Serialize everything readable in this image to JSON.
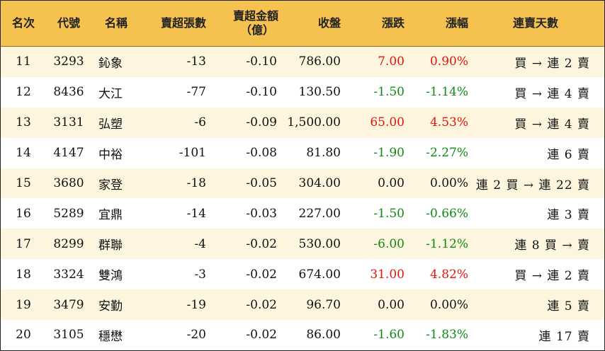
{
  "headers": {
    "rank": "名次",
    "code": "代號",
    "name": "名稱",
    "net_sell_lots": "賣超張數",
    "net_sell_amount_line1": "賣超金額",
    "net_sell_amount_line2": "（億）",
    "close": "收盤",
    "change": "漲跌",
    "change_pct": "漲幅",
    "streak": "連賣天數"
  },
  "rows": [
    {
      "rank": "11",
      "code": "3293",
      "name": "鈊象",
      "lots": "-13",
      "amount": "-0.10",
      "close": "786.00",
      "change": "7.00",
      "pct": "0.90%",
      "dir": "up",
      "streak": "買 → 連 2 賣"
    },
    {
      "rank": "12",
      "code": "8436",
      "name": "大江",
      "lots": "-77",
      "amount": "-0.10",
      "close": "130.50",
      "change": "-1.50",
      "pct": "-1.14%",
      "dir": "down",
      "streak": "買 → 連 4 賣"
    },
    {
      "rank": "13",
      "code": "3131",
      "name": "弘塑",
      "lots": "-6",
      "amount": "-0.09",
      "close": "1,500.00",
      "change": "65.00",
      "pct": "4.53%",
      "dir": "up",
      "streak": "買 → 連 4 賣"
    },
    {
      "rank": "14",
      "code": "4147",
      "name": "中裕",
      "lots": "-101",
      "amount": "-0.08",
      "close": "81.80",
      "change": "-1.90",
      "pct": "-2.27%",
      "dir": "down",
      "streak": "連 6 賣"
    },
    {
      "rank": "15",
      "code": "3680",
      "name": "家登",
      "lots": "-18",
      "amount": "-0.05",
      "close": "304.00",
      "change": "0.00",
      "pct": "0.00%",
      "dir": "flat",
      "streak": "連 2 買 → 連 22 賣"
    },
    {
      "rank": "16",
      "code": "5289",
      "name": "宜鼎",
      "lots": "-14",
      "amount": "-0.03",
      "close": "227.00",
      "change": "-1.50",
      "pct": "-0.66%",
      "dir": "down",
      "streak": "連 3 賣"
    },
    {
      "rank": "17",
      "code": "8299",
      "name": "群聯",
      "lots": "-4",
      "amount": "-0.02",
      "close": "530.00",
      "change": "-6.00",
      "pct": "-1.12%",
      "dir": "down",
      "streak": "連 8 買 → 賣"
    },
    {
      "rank": "18",
      "code": "3324",
      "name": "雙鴻",
      "lots": "-3",
      "amount": "-0.02",
      "close": "674.00",
      "change": "31.00",
      "pct": "4.82%",
      "dir": "up",
      "streak": "買 → 連 2 賣"
    },
    {
      "rank": "19",
      "code": "3479",
      "name": "安勤",
      "lots": "-19",
      "amount": "-0.02",
      "close": "96.70",
      "change": "0.00",
      "pct": "0.00%",
      "dir": "flat",
      "streak": "連 5 賣"
    },
    {
      "rank": "20",
      "code": "3105",
      "name": "穩懋",
      "lots": "-20",
      "amount": "-0.02",
      "close": "86.00",
      "change": "-1.60",
      "pct": "-1.83%",
      "dir": "down",
      "streak": "連 17 賣"
    }
  ],
  "colors": {
    "header_bg": "#f5c24f",
    "stripe_bg": "#fdf5dd",
    "up": "#e8140c",
    "down": "#0f8a14"
  }
}
